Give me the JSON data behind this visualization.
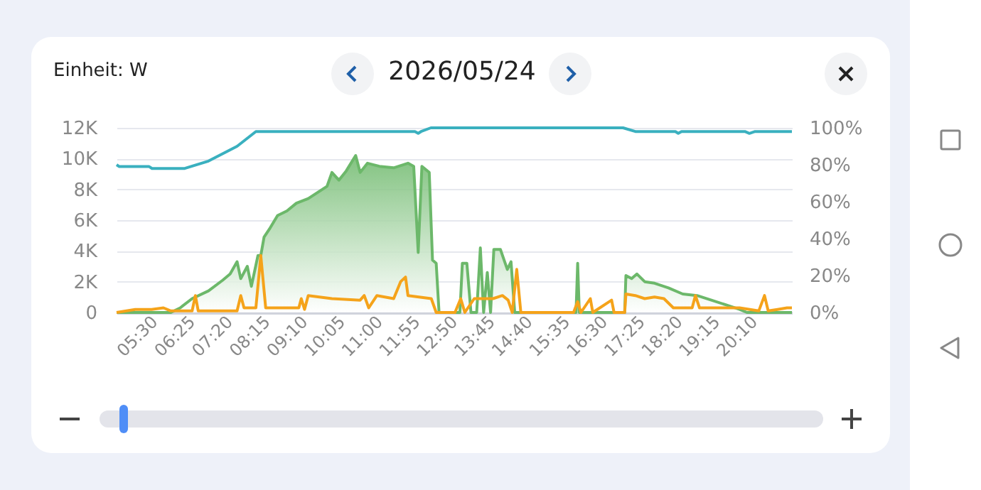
{
  "chart_data": {
    "type": "line",
    "title": "2026/05/24",
    "ylabel": "Einheit: W",
    "xlim": [
      4.583,
      21.1
    ],
    "xticks": [
      {
        "value": 5.5,
        "label": "05:30"
      },
      {
        "value": 6.4167,
        "label": "06:25"
      },
      {
        "value": 7.3333,
        "label": "07:20"
      },
      {
        "value": 8.25,
        "label": "08:15"
      },
      {
        "value": 9.1667,
        "label": "09:10"
      },
      {
        "value": 10.0833,
        "label": "10:05"
      },
      {
        "value": 11,
        "label": "11:00"
      },
      {
        "value": 11.9167,
        "label": "11:55"
      },
      {
        "value": 12.8333,
        "label": "12:50"
      },
      {
        "value": 13.75,
        "label": "13:45"
      },
      {
        "value": 14.6667,
        "label": "14:40"
      },
      {
        "value": 15.5833,
        "label": "15:35"
      },
      {
        "value": 16.5,
        "label": "16:30"
      },
      {
        "value": 17.4167,
        "label": "17:25"
      },
      {
        "value": 18.3333,
        "label": "18:20"
      },
      {
        "value": 19.25,
        "label": "19:15"
      },
      {
        "value": 20.1667,
        "label": "20:10"
      }
    ],
    "ylim": [
      0,
      12000
    ],
    "yticks": [
      0,
      {
        "value": 2000,
        "label": "2K"
      },
      {
        "value": 4000,
        "label": "4K"
      },
      {
        "value": 6000,
        "label": "6K"
      },
      {
        "value": 8000,
        "label": "8K"
      },
      {
        "value": 10000,
        "label": "10K"
      },
      {
        "value": 12000,
        "label": "12K"
      }
    ],
    "y2lim": [
      0,
      100
    ],
    "y2ticks": [
      {
        "value": 0,
        "label": "0%"
      },
      {
        "value": 20,
        "label": "20%"
      },
      {
        "value": 40,
        "label": "40%"
      },
      {
        "value": 60,
        "label": "60%"
      },
      {
        "value": 80,
        "label": "80%"
      },
      {
        "value": 100,
        "label": "100%"
      }
    ],
    "grid": "y",
    "marker": "none",
    "line_style": "solid",
    "series": [
      {
        "type": "area",
        "color": "#6cb86a",
        "x": [
          4.583,
          5.91,
          6.14,
          6.43,
          6.83,
          7.18,
          7.36,
          7.53,
          7.62,
          7.78,
          7.88,
          8.04,
          8.11,
          8.19,
          8.34,
          8.52,
          8.75,
          8.98,
          9.27,
          9.73,
          9.85,
          10.02,
          10.2,
          10.43,
          10.54,
          10.72,
          11.01,
          11.36,
          11.71,
          11.85,
          11.96,
          12.05,
          12.23,
          12.31,
          12.4,
          12.47,
          12.98,
          13.04,
          13.15,
          13.25,
          13.39,
          13.48,
          13.56,
          13.65,
          13.73,
          13.81,
          13.97,
          14.14,
          14.23,
          14.32,
          15.82,
          15.86,
          15.9,
          17.01,
          17.04,
          17.18,
          17.31,
          17.5,
          17.74,
          18.08,
          18.43,
          18.78,
          19.13,
          19.48,
          19.82,
          20.0,
          21.1
        ],
        "values": [
          0,
          0,
          300,
          900,
          1400,
          2100,
          2500,
          3300,
          2200,
          3000,
          1700,
          3700,
          3700,
          4900,
          5500,
          6300,
          6600,
          7100,
          7400,
          8200,
          9100,
          8600,
          9200,
          10200,
          9100,
          9700,
          9500,
          9400,
          9700,
          9500,
          3900,
          9500,
          9100,
          3400,
          3200,
          0,
          0,
          3200,
          3200,
          0,
          0,
          4200,
          0,
          2600,
          0,
          4100,
          4100,
          2800,
          3300,
          0,
          0,
          3200,
          0,
          0,
          2400,
          2200,
          2500,
          2000,
          1900,
          1600,
          1200,
          1100,
          800,
          500,
          200,
          0,
          0
        ]
      },
      {
        "type": "line",
        "color": "#f5a31a",
        "x": [
          4.583,
          5.04,
          5.44,
          5.73,
          5.91,
          6.43,
          6.51,
          6.58,
          7.53,
          7.62,
          7.7,
          7.99,
          8.11,
          8.23,
          9.04,
          9.1,
          9.18,
          9.27,
          9.85,
          10.54,
          10.64,
          10.75,
          10.95,
          11.36,
          11.53,
          11.65,
          11.71,
          12.28,
          12.4,
          12.86,
          13.0,
          13.1,
          13.33,
          13.56,
          13.79,
          14.02,
          14.16,
          14.26,
          14.37,
          14.47,
          15.76,
          15.86,
          15.94,
          16.17,
          16.23,
          16.69,
          16.75,
          17.01,
          17.04,
          17.27,
          17.5,
          17.74,
          17.97,
          18.2,
          18.66,
          18.74,
          18.84,
          19.82,
          20.29,
          20.43,
          20.52,
          20.75,
          20.98,
          21.1
        ],
        "values": [
          0,
          200,
          200,
          300,
          100,
          100,
          1100,
          100,
          100,
          1100,
          300,
          300,
          3700,
          300,
          300,
          900,
          200,
          1100,
          900,
          800,
          1100,
          300,
          1100,
          900,
          2000,
          2300,
          1100,
          900,
          0,
          0,
          900,
          0,
          900,
          900,
          900,
          1100,
          800,
          0,
          2800,
          0,
          0,
          700,
          0,
          900,
          0,
          800,
          0,
          0,
          1200,
          1100,
          900,
          1000,
          900,
          300,
          300,
          1100,
          300,
          300,
          100,
          1100,
          100,
          200,
          300,
          300
        ]
      },
      {
        "type": "line",
        "axis": "y2",
        "color": "#3ab0bf",
        "x": [
          4.583,
          4.65,
          5.38,
          5.45,
          6.25,
          6.83,
          7.53,
          7.99,
          11.88,
          11.96,
          12.03,
          12.27,
          16.97,
          17.27,
          18.25,
          18.32,
          18.4,
          19.95,
          20.06,
          20.2,
          21.1
        ],
        "values": [
          80,
          79,
          79,
          78,
          78,
          82,
          90,
          98,
          98,
          97,
          98,
          100,
          100,
          98,
          98,
          97,
          98,
          98,
          97,
          98,
          98
        ]
      }
    ]
  }
}
